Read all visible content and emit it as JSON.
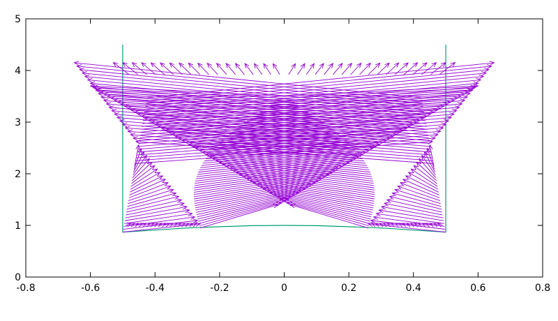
{
  "chart_data": {
    "type": "line",
    "title": "",
    "xlabel": "",
    "ylabel": "",
    "xlim": [
      -0.8,
      0.8
    ],
    "ylim": [
      0,
      5
    ],
    "xticks": [
      "-0.8",
      "-0.6",
      "-0.4",
      "-0.2",
      "0",
      "0.2",
      "0.4",
      "0.6",
      "0.8"
    ],
    "yticks": [
      "0",
      "1",
      "2",
      "3",
      "4",
      "5"
    ],
    "grid": false,
    "legend": "none",
    "colors": {
      "boundary": "#009e73",
      "vectors": "#9400d3",
      "axes": "#000000"
    },
    "series": [
      {
        "type": "line",
        "x": [
          -0.5,
          -0.5,
          -0.4,
          -0.3,
          -0.2,
          -0.1,
          0.0,
          0.1,
          0.2,
          0.3,
          0.4,
          0.5,
          0.5
        ],
        "y": [
          4.5,
          0.87,
          0.91,
          0.95,
          0.975,
          0.995,
          1.0,
          0.995,
          0.975,
          0.95,
          0.91,
          0.87,
          4.5
        ]
      },
      {
        "type": "vector-field",
        "x_base": [
          -0.5,
          0.5
        ],
        "y_bottom": 0.87,
        "y_top": 3.47,
        "tip_y": [
          1.03,
          4.15
        ],
        "spread": [
          0.26,
          0.65
        ],
        "count": 48
      }
    ]
  }
}
